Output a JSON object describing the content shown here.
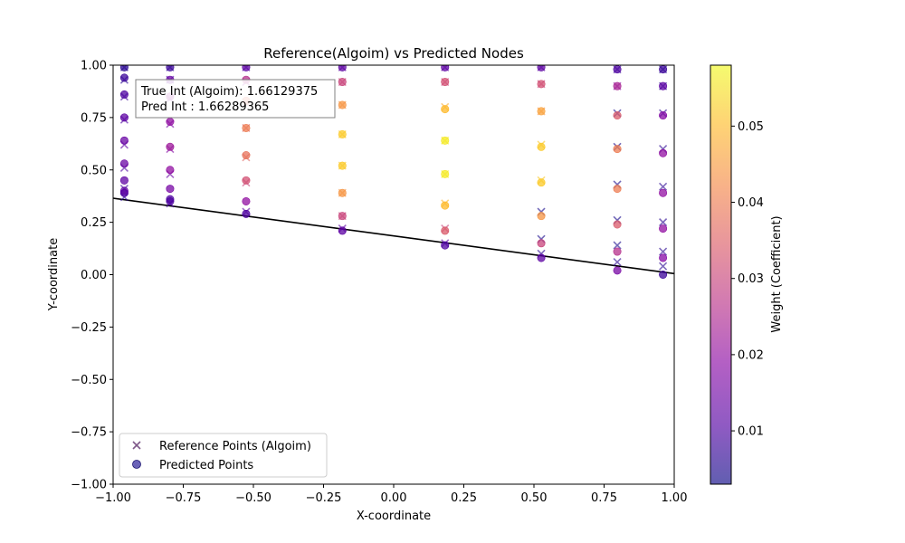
{
  "chart_data": {
    "type": "scatter",
    "title": "Reference(Algoim) vs Predicted Nodes",
    "xlabel": "X-coordinate",
    "ylabel": "Y-coordinate",
    "xlim": [
      -1.0,
      1.0
    ],
    "ylim": [
      -1.0,
      1.0
    ],
    "x_ticks": [
      "−1.00",
      "−0.75",
      "−0.50",
      "−0.25",
      "0.00",
      "0.25",
      "0.50",
      "0.75",
      "1.00"
    ],
    "y_ticks": [
      "−1.00",
      "−0.75",
      "−0.50",
      "−0.25",
      "0.00",
      "0.25",
      "0.50",
      "0.75",
      "1.00"
    ],
    "grid": false,
    "colormap": "plasma",
    "colorbar": {
      "label": "Weight (Coefficient)",
      "range": [
        0.003,
        0.058
      ],
      "ticks": [
        "0.01",
        "0.02",
        "0.03",
        "0.04",
        "0.05"
      ]
    },
    "annotation": {
      "line1": "True Int (Algoim): 1.66129375",
      "line2": "Pred Int : 1.66289365"
    },
    "legend": {
      "placement": "lower-left",
      "entries": [
        "Reference Points (Algoim)",
        "Predicted Points"
      ]
    },
    "boundary_line": {
      "x": [
        -1.0,
        1.0
      ],
      "y": [
        0.365,
        0.005
      ]
    },
    "x_columns": [
      -0.96,
      -0.797,
      -0.526,
      -0.183,
      0.183,
      0.526,
      0.797,
      0.96
    ],
    "reference_points": [
      {
        "x": -0.96,
        "y": 0.37,
        "w": 0.006
      },
      {
        "x": -0.96,
        "y": 0.41,
        "w": 0.008
      },
      {
        "x": -0.96,
        "y": 0.51,
        "w": 0.01
      },
      {
        "x": -0.96,
        "y": 0.62,
        "w": 0.012
      },
      {
        "x": -0.96,
        "y": 0.74,
        "w": 0.01
      },
      {
        "x": -0.96,
        "y": 0.85,
        "w": 0.008
      },
      {
        "x": -0.96,
        "y": 0.93,
        "w": 0.006
      },
      {
        "x": -0.96,
        "y": 0.99,
        "w": 0.005
      },
      {
        "x": -0.797,
        "y": 0.34,
        "w": 0.009
      },
      {
        "x": -0.797,
        "y": 0.48,
        "w": 0.014
      },
      {
        "x": -0.797,
        "y": 0.6,
        "w": 0.018
      },
      {
        "x": -0.797,
        "y": 0.72,
        "w": 0.016
      },
      {
        "x": -0.797,
        "y": 0.84,
        "w": 0.012
      },
      {
        "x": -0.797,
        "y": 0.93,
        "w": 0.009
      },
      {
        "x": -0.797,
        "y": 0.99,
        "w": 0.006
      },
      {
        "x": -0.526,
        "y": 0.3,
        "w": 0.012
      },
      {
        "x": -0.526,
        "y": 0.44,
        "w": 0.03
      },
      {
        "x": -0.526,
        "y": 0.56,
        "w": 0.036
      },
      {
        "x": -0.526,
        "y": 0.7,
        "w": 0.036
      },
      {
        "x": -0.526,
        "y": 0.82,
        "w": 0.03
      },
      {
        "x": -0.526,
        "y": 0.92,
        "w": 0.018
      },
      {
        "x": -0.526,
        "y": 0.99,
        "w": 0.01
      },
      {
        "x": -0.183,
        "y": 0.22,
        "w": 0.012
      },
      {
        "x": -0.183,
        "y": 0.28,
        "w": 0.03
      },
      {
        "x": -0.183,
        "y": 0.39,
        "w": 0.044
      },
      {
        "x": -0.183,
        "y": 0.52,
        "w": 0.052
      },
      {
        "x": -0.183,
        "y": 0.67,
        "w": 0.052
      },
      {
        "x": -0.183,
        "y": 0.81,
        "w": 0.044
      },
      {
        "x": -0.183,
        "y": 0.92,
        "w": 0.03
      },
      {
        "x": -0.183,
        "y": 0.99,
        "w": 0.012
      },
      {
        "x": 0.183,
        "y": 0.15,
        "w": 0.012
      },
      {
        "x": 0.183,
        "y": 0.22,
        "w": 0.03
      },
      {
        "x": 0.183,
        "y": 0.34,
        "w": 0.05
      },
      {
        "x": 0.183,
        "y": 0.48,
        "w": 0.056
      },
      {
        "x": 0.183,
        "y": 0.64,
        "w": 0.056
      },
      {
        "x": 0.183,
        "y": 0.8,
        "w": 0.048
      },
      {
        "x": 0.183,
        "y": 0.92,
        "w": 0.03
      },
      {
        "x": 0.183,
        "y": 0.99,
        "w": 0.012
      },
      {
        "x": 0.526,
        "y": 0.1,
        "w": 0.006
      },
      {
        "x": 0.526,
        "y": 0.17,
        "w": 0.004
      },
      {
        "x": 0.526,
        "y": 0.3,
        "w": 0.004
      },
      {
        "x": 0.526,
        "y": 0.45,
        "w": 0.052
      },
      {
        "x": 0.526,
        "y": 0.62,
        "w": 0.052
      },
      {
        "x": 0.526,
        "y": 0.78,
        "w": 0.044
      },
      {
        "x": 0.526,
        "y": 0.91,
        "w": 0.03
      },
      {
        "x": 0.526,
        "y": 0.99,
        "w": 0.012
      },
      {
        "x": 0.797,
        "y": 0.06,
        "w": 0.006
      },
      {
        "x": 0.797,
        "y": 0.14,
        "w": 0.004
      },
      {
        "x": 0.797,
        "y": 0.26,
        "w": 0.004
      },
      {
        "x": 0.797,
        "y": 0.43,
        "w": 0.004
      },
      {
        "x": 0.797,
        "y": 0.61,
        "w": 0.004
      },
      {
        "x": 0.797,
        "y": 0.77,
        "w": 0.004
      },
      {
        "x": 0.797,
        "y": 0.9,
        "w": 0.02
      },
      {
        "x": 0.797,
        "y": 0.98,
        "w": 0.008
      },
      {
        "x": 0.96,
        "y": 0.04,
        "w": 0.006
      },
      {
        "x": 0.96,
        "y": 0.11,
        "w": 0.006
      },
      {
        "x": 0.96,
        "y": 0.25,
        "w": 0.006
      },
      {
        "x": 0.96,
        "y": 0.42,
        "w": 0.006
      },
      {
        "x": 0.96,
        "y": 0.6,
        "w": 0.006
      },
      {
        "x": 0.96,
        "y": 0.77,
        "w": 0.006
      },
      {
        "x": 0.96,
        "y": 0.9,
        "w": 0.006
      },
      {
        "x": 0.96,
        "y": 0.98,
        "w": 0.005
      }
    ],
    "predicted_points": [
      {
        "x": -0.96,
        "y": 0.39,
        "w": 0.01
      },
      {
        "x": -0.96,
        "y": 0.4,
        "w": 0.012
      },
      {
        "x": -0.96,
        "y": 0.45,
        "w": 0.012
      },
      {
        "x": -0.96,
        "y": 0.53,
        "w": 0.014
      },
      {
        "x": -0.96,
        "y": 0.64,
        "w": 0.014
      },
      {
        "x": -0.96,
        "y": 0.75,
        "w": 0.012
      },
      {
        "x": -0.96,
        "y": 0.86,
        "w": 0.01
      },
      {
        "x": -0.96,
        "y": 0.94,
        "w": 0.008
      },
      {
        "x": -0.96,
        "y": 0.99,
        "w": 0.006
      },
      {
        "x": -0.797,
        "y": 0.35,
        "w": 0.01
      },
      {
        "x": -0.797,
        "y": 0.36,
        "w": 0.01
      },
      {
        "x": -0.797,
        "y": 0.41,
        "w": 0.016
      },
      {
        "x": -0.797,
        "y": 0.5,
        "w": 0.02
      },
      {
        "x": -0.797,
        "y": 0.61,
        "w": 0.022
      },
      {
        "x": -0.797,
        "y": 0.73,
        "w": 0.02
      },
      {
        "x": -0.797,
        "y": 0.85,
        "w": 0.022
      },
      {
        "x": -0.797,
        "y": 0.93,
        "w": 0.014
      },
      {
        "x": -0.797,
        "y": 0.99,
        "w": 0.008
      },
      {
        "x": -0.526,
        "y": 0.29,
        "w": 0.01
      },
      {
        "x": -0.526,
        "y": 0.35,
        "w": 0.02
      },
      {
        "x": -0.526,
        "y": 0.45,
        "w": 0.032
      },
      {
        "x": -0.526,
        "y": 0.57,
        "w": 0.038
      },
      {
        "x": -0.526,
        "y": 0.7,
        "w": 0.04
      },
      {
        "x": -0.526,
        "y": 0.83,
        "w": 0.038
      },
      {
        "x": -0.526,
        "y": 0.93,
        "w": 0.026
      },
      {
        "x": -0.526,
        "y": 0.99,
        "w": 0.012
      },
      {
        "x": -0.183,
        "y": 0.21,
        "w": 0.012
      },
      {
        "x": -0.183,
        "y": 0.28,
        "w": 0.03
      },
      {
        "x": -0.183,
        "y": 0.39,
        "w": 0.044
      },
      {
        "x": -0.183,
        "y": 0.52,
        "w": 0.052
      },
      {
        "x": -0.183,
        "y": 0.67,
        "w": 0.052
      },
      {
        "x": -0.183,
        "y": 0.81,
        "w": 0.044
      },
      {
        "x": -0.183,
        "y": 0.92,
        "w": 0.03
      },
      {
        "x": -0.183,
        "y": 0.99,
        "w": 0.012
      },
      {
        "x": 0.183,
        "y": 0.14,
        "w": 0.01
      },
      {
        "x": 0.183,
        "y": 0.21,
        "w": 0.034
      },
      {
        "x": 0.183,
        "y": 0.33,
        "w": 0.05
      },
      {
        "x": 0.183,
        "y": 0.48,
        "w": 0.056
      },
      {
        "x": 0.183,
        "y": 0.64,
        "w": 0.056
      },
      {
        "x": 0.183,
        "y": 0.79,
        "w": 0.05
      },
      {
        "x": 0.183,
        "y": 0.92,
        "w": 0.032
      },
      {
        "x": 0.183,
        "y": 0.99,
        "w": 0.012
      },
      {
        "x": 0.526,
        "y": 0.08,
        "w": 0.012
      },
      {
        "x": 0.526,
        "y": 0.15,
        "w": 0.03
      },
      {
        "x": 0.526,
        "y": 0.28,
        "w": 0.044
      },
      {
        "x": 0.526,
        "y": 0.44,
        "w": 0.052
      },
      {
        "x": 0.526,
        "y": 0.61,
        "w": 0.052
      },
      {
        "x": 0.526,
        "y": 0.78,
        "w": 0.046
      },
      {
        "x": 0.526,
        "y": 0.91,
        "w": 0.032
      },
      {
        "x": 0.526,
        "y": 0.99,
        "w": 0.012
      },
      {
        "x": 0.797,
        "y": 0.02,
        "w": 0.016
      },
      {
        "x": 0.797,
        "y": 0.11,
        "w": 0.026
      },
      {
        "x": 0.797,
        "y": 0.24,
        "w": 0.034
      },
      {
        "x": 0.797,
        "y": 0.41,
        "w": 0.04
      },
      {
        "x": 0.797,
        "y": 0.6,
        "w": 0.04
      },
      {
        "x": 0.797,
        "y": 0.76,
        "w": 0.034
      },
      {
        "x": 0.797,
        "y": 0.9,
        "w": 0.024
      },
      {
        "x": 0.797,
        "y": 0.98,
        "w": 0.01
      },
      {
        "x": 0.96,
        "y": 0.0,
        "w": 0.008
      },
      {
        "x": 0.96,
        "y": 0.08,
        "w": 0.018
      },
      {
        "x": 0.96,
        "y": 0.22,
        "w": 0.02
      },
      {
        "x": 0.96,
        "y": 0.39,
        "w": 0.02
      },
      {
        "x": 0.96,
        "y": 0.58,
        "w": 0.02
      },
      {
        "x": 0.96,
        "y": 0.76,
        "w": 0.018
      },
      {
        "x": 0.96,
        "y": 0.9,
        "w": 0.012
      },
      {
        "x": 0.96,
        "y": 0.98,
        "w": 0.008
      }
    ]
  }
}
